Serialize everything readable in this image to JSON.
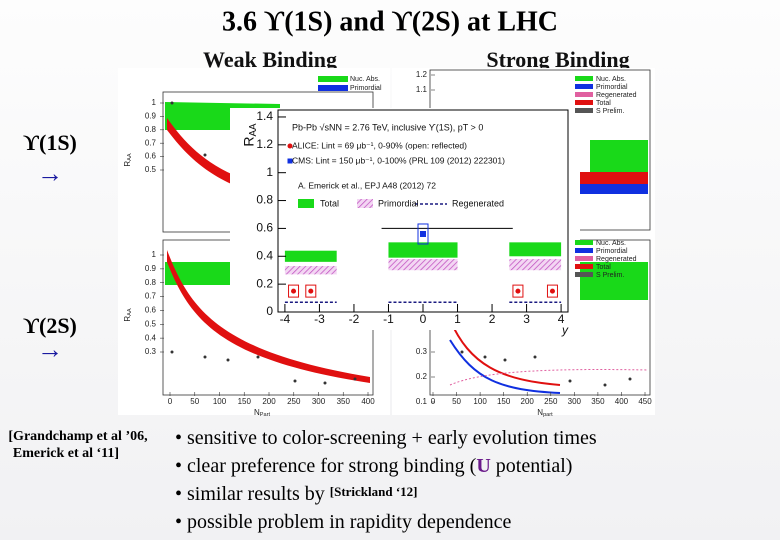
{
  "title": "3.6 ϒ(1S) and ϒ(2S) at LHC",
  "columns": [
    "Weak Binding",
    "Strong Binding"
  ],
  "rows": [
    "ϒ(1S)",
    "ϒ(2S)"
  ],
  "arrows": [
    "→",
    "→"
  ],
  "citation": [
    "[Grandchamp et al ’06,",
    "Emerick et al ‘11]"
  ],
  "bullets": [
    [
      "• sensitive to color-screening + early evolution times"
    ],
    [
      "• clear preference for strong binding (",
      "U",
      " potential)"
    ],
    [
      "• similar results by ",
      "[Strickland ‘12]"
    ],
    [
      "• possible problem in rapidity dependence"
    ]
  ],
  "weak_panel": {
    "legend": [
      "Nuc. Abs.",
      "Primordial"
    ],
    "top_yticks": [
      1,
      0.9,
      0.8,
      0.7,
      0.6,
      0.5
    ],
    "bottom_yticks": [
      1,
      0.9,
      0.8,
      0.7,
      0.6,
      0.5,
      0.4,
      0.3
    ],
    "xticks": [
      0,
      50,
      100,
      150,
      200,
      250,
      300,
      350,
      400
    ],
    "xlabel": "N",
    "xlabel_sub": "Part",
    "ylabel_top": "R",
    "ylabel_top_sub": "AA",
    "ylabel_bottom": "R",
    "ylabel_bottom_sub": "AA"
  },
  "strong_panel": {
    "top_legend": [
      "Nuc. Abs.",
      "Primordial",
      "Regenerated",
      "Total",
      "S Prelim."
    ],
    "bottom_legend": [
      "Nuc. Abs.",
      "Primordial",
      "Regenerated",
      "Total",
      "S Prelim."
    ],
    "top_yticks": [
      1.2,
      1.1
    ],
    "bottom_yticks": [
      0.3,
      0.2,
      0.1
    ],
    "xticks": [
      0,
      50,
      100,
      150,
      200,
      250,
      300,
      350,
      400,
      450
    ],
    "xlabel": "N",
    "xlabel_sub": "part"
  },
  "inset": {
    "ylabel": "R",
    "ylabel_sub": "AA",
    "xlabel": "y",
    "xlim": [
      -4.2,
      4.2
    ],
    "ylim": [
      0,
      1.45
    ],
    "xticks": [
      -4,
      -3,
      -2,
      -1,
      0,
      1,
      2,
      3,
      4
    ],
    "yticks": [
      0,
      0.2,
      0.4,
      0.6,
      0.8,
      1,
      1.2,
      1.4
    ],
    "legend_lines": [
      "Pb-Pb √sNN = 2.76 TeV, inclusive ϒ(1S), pT > 0",
      "ALICE: Lint = 69 μb⁻¹, 0-90% (open: reflected)",
      "CMS: Lint = 150 μb⁻¹, 0-100% (PRL 109 (2012) 222301)",
      "A. Emerick et al., EPJ A48 (2012) 72"
    ],
    "model_legend": [
      "Total",
      "Primordial",
      "Regenerated"
    ],
    "cms": {
      "x": [
        0
      ],
      "values": [
        0.56
      ]
    },
    "alice": {
      "x": [
        -3.75,
        -3.25,
        2.75,
        3.75
      ],
      "values": [
        0.15,
        0.15,
        0.15,
        0.15
      ]
    }
  }
}
